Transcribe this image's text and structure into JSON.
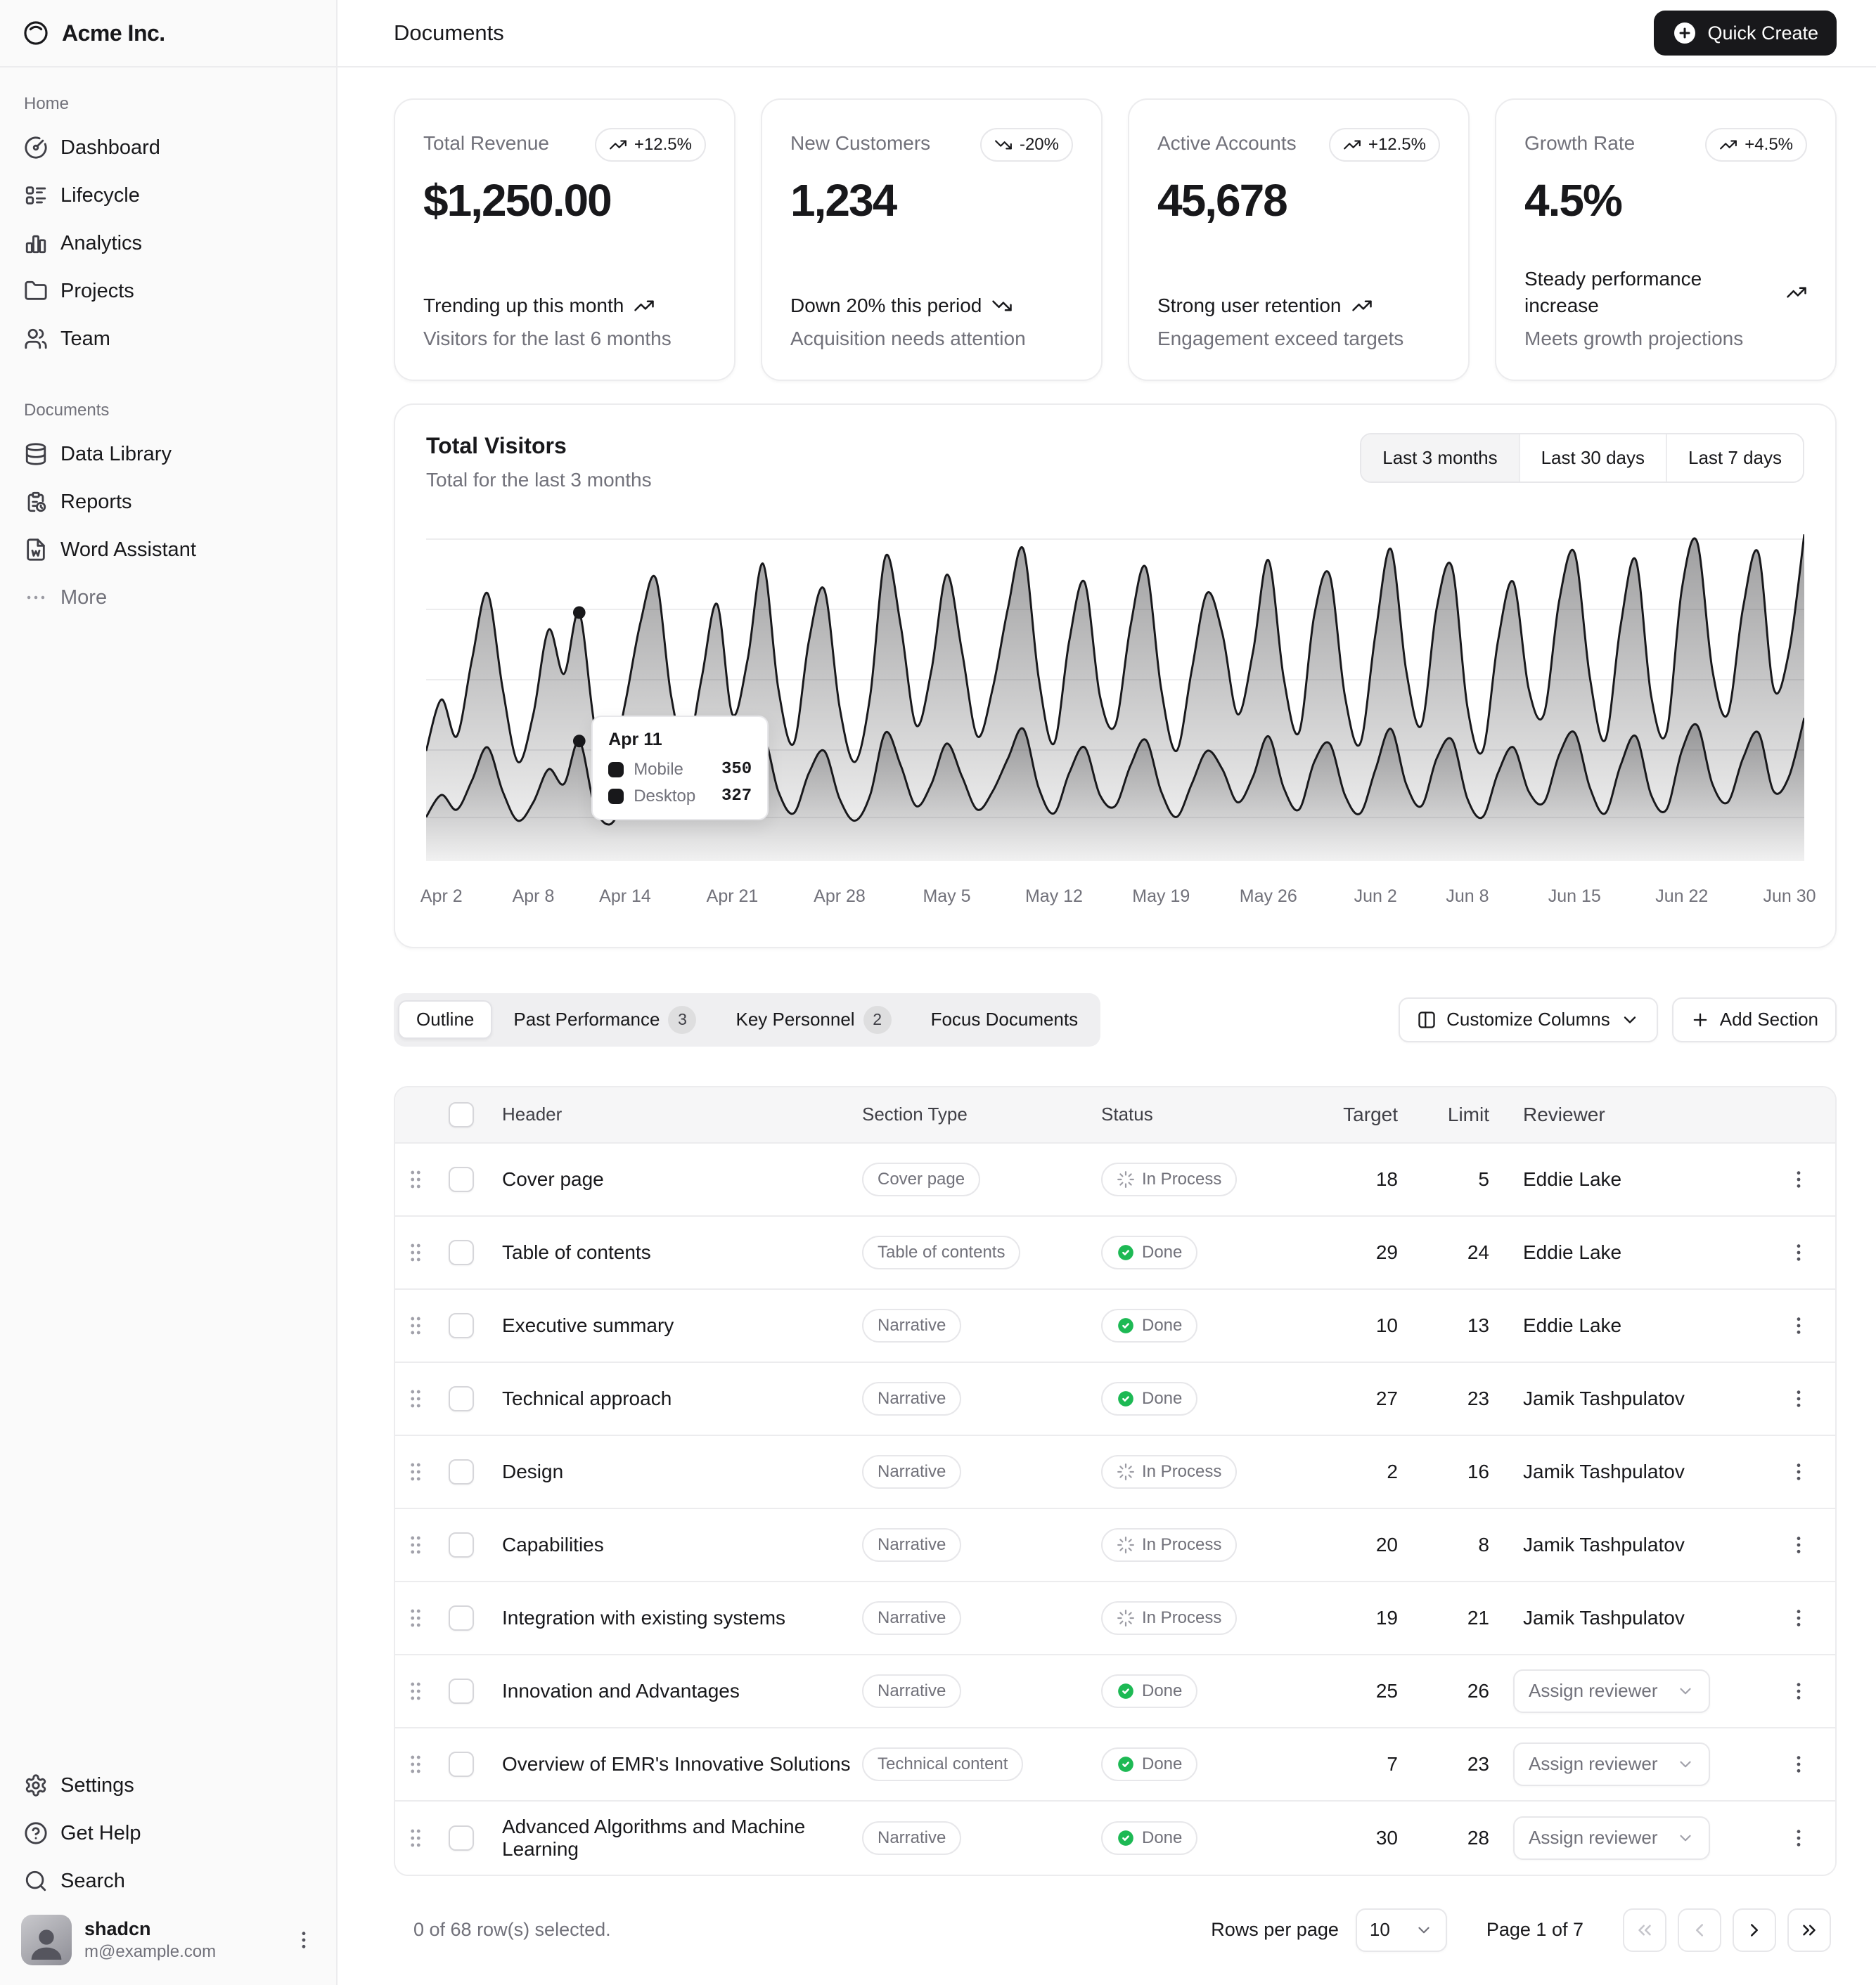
{
  "colors": {
    "primary": "#18181b",
    "success": "#1db954",
    "muted_text": "#71717a",
    "border": "#ececee"
  },
  "brand": {
    "name": "Acme Inc."
  },
  "header": {
    "title": "Documents",
    "quick_create_label": "Quick Create"
  },
  "sidebar": {
    "groups": [
      {
        "label": "Home",
        "items": [
          {
            "label": "Dashboard"
          },
          {
            "label": "Lifecycle"
          },
          {
            "label": "Analytics"
          },
          {
            "label": "Projects"
          },
          {
            "label": "Team"
          }
        ]
      },
      {
        "label": "Documents",
        "items": [
          {
            "label": "Data Library"
          },
          {
            "label": "Reports"
          },
          {
            "label": "Word Assistant"
          },
          {
            "label": "More"
          }
        ]
      }
    ],
    "footer_items": [
      {
        "label": "Settings"
      },
      {
        "label": "Get Help"
      },
      {
        "label": "Search"
      }
    ],
    "user": {
      "name": "shadcn",
      "email": "m@example.com"
    }
  },
  "stats": {
    "cards": [
      {
        "label": "Total Revenue",
        "badge": "+12.5%",
        "trend": "up",
        "value": "$1,250.00",
        "headline": "Trending up this month",
        "subtext": "Visitors for the last 6 months"
      },
      {
        "label": "New Customers",
        "badge": "-20%",
        "trend": "down",
        "value": "1,234",
        "headline": "Down 20% this period",
        "subtext": "Acquisition needs attention"
      },
      {
        "label": "Active Accounts",
        "badge": "+12.5%",
        "trend": "up",
        "value": "45,678",
        "headline": "Strong user retention",
        "subtext": "Engagement exceed targets"
      },
      {
        "label": "Growth Rate",
        "badge": "+4.5%",
        "trend": "up",
        "value": "4.5%",
        "headline": "Steady performance increase",
        "subtext": "Meets growth projections"
      }
    ]
  },
  "chart_card": {
    "title": "Total Visitors",
    "subtitle": "Total for the last 3 months",
    "ranges": [
      "Last 3 months",
      "Last 30 days",
      "Last 7 days"
    ],
    "selected_range": "Last 3 months"
  },
  "chart_data": {
    "type": "area",
    "title": "Total Visitors",
    "stacked": true,
    "grid": true,
    "legend_position": "none",
    "x_range": [
      "Apr 1",
      "Jun 30"
    ],
    "ymax": 900,
    "ticks": [
      {
        "label": "Apr 2",
        "pos": 1.11
      },
      {
        "label": "Apr 8",
        "pos": 7.78
      },
      {
        "label": "Apr 14",
        "pos": 14.44
      },
      {
        "label": "Apr 21",
        "pos": 22.22
      },
      {
        "label": "Apr 28",
        "pos": 30.0
      },
      {
        "label": "May 5",
        "pos": 37.78
      },
      {
        "label": "May 12",
        "pos": 45.56
      },
      {
        "label": "May 19",
        "pos": 53.33
      },
      {
        "label": "May 26",
        "pos": 61.11
      },
      {
        "label": "Jun 2",
        "pos": 68.89
      },
      {
        "label": "Jun 8",
        "pos": 75.56
      },
      {
        "label": "Jun 15",
        "pos": 83.33
      },
      {
        "label": "Jun 22",
        "pos": 91.11
      },
      {
        "label": "Jun 30",
        "pos": 100.0
      }
    ],
    "series": [
      {
        "name": "Mobile",
        "values": [
          180,
          260,
          200,
          330,
          420,
          280,
          160,
          240,
          380,
          300,
          350,
          220,
          150,
          260,
          390,
          450,
          270,
          180,
          300,
          420,
          240,
          330,
          470,
          280,
          190,
          360,
          440,
          250,
          160,
          270,
          480,
          380,
          220,
          310,
          460,
          340,
          200,
          280,
          410,
          490,
          300,
          190,
          360,
          450,
          270,
          220,
          380,
          470,
          280,
          180,
          310,
          430,
          370,
          240,
          340,
          480,
          300,
          210,
          400,
          460,
          270,
          190,
          370,
          490,
          310,
          220,
          410,
          470,
          250,
          180,
          360,
          450,
          280,
          240,
          420,
          490,
          300,
          200,
          380,
          480,
          270,
          210,
          440,
          500,
          310,
          240,
          410,
          490,
          280,
          340,
          500
        ]
      },
      {
        "name": "Desktop",
        "values": [
          120,
          180,
          140,
          220,
          310,
          190,
          110,
          160,
          250,
          210,
          327,
          150,
          100,
          170,
          260,
          320,
          180,
          120,
          200,
          280,
          160,
          220,
          340,
          190,
          130,
          240,
          300,
          170,
          110,
          180,
          350,
          260,
          150,
          210,
          320,
          230,
          140,
          190,
          280,
          360,
          200,
          130,
          240,
          310,
          180,
          150,
          260,
          330,
          190,
          120,
          210,
          300,
          250,
          160,
          230,
          340,
          200,
          140,
          270,
          320,
          180,
          130,
          250,
          360,
          210,
          150,
          280,
          330,
          170,
          120,
          240,
          310,
          190,
          160,
          290,
          350,
          200,
          130,
          260,
          340,
          180,
          140,
          300,
          370,
          210,
          160,
          280,
          350,
          190,
          230,
          390
        ]
      }
    ],
    "tooltip": {
      "index": 10,
      "title": "Apr 11",
      "rows": [
        {
          "name": "Mobile",
          "value": "350"
        },
        {
          "name": "Desktop",
          "value": "327"
        }
      ]
    }
  },
  "tabsbar": {
    "tabs": [
      {
        "label": "Outline",
        "count": ""
      },
      {
        "label": "Past Performance",
        "count": "3"
      },
      {
        "label": "Key Personnel",
        "count": "2"
      },
      {
        "label": "Focus Documents",
        "count": ""
      }
    ],
    "selected": "Outline",
    "customize_columns_label": "Customize Columns",
    "add_section_label": "Add Section"
  },
  "table": {
    "columns": {
      "header": "Header",
      "type": "Section Type",
      "status": "Status",
      "target": "Target",
      "limit": "Limit",
      "reviewer": "Reviewer"
    },
    "rows": [
      {
        "header": "Cover page",
        "type": "Cover page",
        "status": "In Process",
        "target": "18",
        "limit": "5",
        "reviewer": "Eddie Lake"
      },
      {
        "header": "Table of contents",
        "type": "Table of contents",
        "status": "Done",
        "target": "29",
        "limit": "24",
        "reviewer": "Eddie Lake"
      },
      {
        "header": "Executive summary",
        "type": "Narrative",
        "status": "Done",
        "target": "10",
        "limit": "13",
        "reviewer": "Eddie Lake"
      },
      {
        "header": "Technical approach",
        "type": "Narrative",
        "status": "Done",
        "target": "27",
        "limit": "23",
        "reviewer": "Jamik Tashpulatov"
      },
      {
        "header": "Design",
        "type": "Narrative",
        "status": "In Process",
        "target": "2",
        "limit": "16",
        "reviewer": "Jamik Tashpulatov"
      },
      {
        "header": "Capabilities",
        "type": "Narrative",
        "status": "In Process",
        "target": "20",
        "limit": "8",
        "reviewer": "Jamik Tashpulatov"
      },
      {
        "header": "Integration with existing systems",
        "type": "Narrative",
        "status": "In Process",
        "target": "19",
        "limit": "21",
        "reviewer": "Jamik Tashpulatov"
      },
      {
        "header": "Innovation and Advantages",
        "type": "Narrative",
        "status": "Done",
        "target": "25",
        "limit": "26",
        "reviewer": "Assign reviewer"
      },
      {
        "header": "Overview of EMR's Innovative Solutions",
        "type": "Technical content",
        "status": "Done",
        "target": "7",
        "limit": "23",
        "reviewer": "Assign reviewer"
      },
      {
        "header": "Advanced Algorithms and Machine Learning",
        "type": "Narrative",
        "status": "Done",
        "target": "30",
        "limit": "28",
        "reviewer": "Assign reviewer"
      }
    ]
  },
  "pagination": {
    "selection_info": "0 of 68 row(s) selected.",
    "rows_per_page_label": "Rows per page",
    "rows_per_page_value": "10",
    "page_info": "Page 1 of 7"
  }
}
